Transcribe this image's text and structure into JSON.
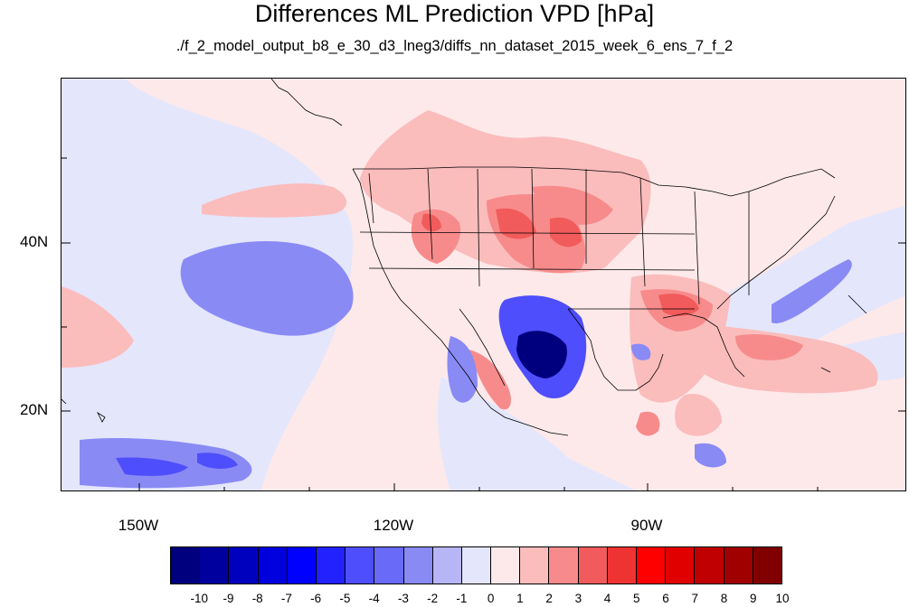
{
  "title": "Differences ML Prediction VPD [hPa]",
  "subtitle": "./f_2_model_output_b8_e_30_d3_lneg3/diffs_nn_dataset_2015_week_6_ens_7_f_2",
  "map": {
    "lat_labels": [
      "40N",
      "20N"
    ],
    "lon_labels": [
      "150W",
      "120W",
      "90W"
    ],
    "region": "Eastern Pacific / North America / Gulf of Mexico",
    "colors": {
      "neg_strong": "#00007f",
      "neg_mid": "#4e4efc",
      "neg_light": "#8a8af5",
      "neg_faint": "#e4e6fb",
      "pos_faint": "#fde9ea",
      "pos_light": "#fbbcbc",
      "pos_mid": "#f78b8b",
      "pos_strong": "#f25b5b",
      "coast": "#000000"
    }
  },
  "colorbar": {
    "labels": [
      "-10",
      "-9",
      "-8",
      "-7",
      "-6",
      "-5",
      "-4",
      "-3",
      "-2",
      "-1",
      "0",
      "1",
      "2",
      "3",
      "4",
      "5",
      "6",
      "7",
      "8",
      "9",
      "10"
    ],
    "colors": [
      "#00007f",
      "#00009f",
      "#0000bf",
      "#0000df",
      "#0000ff",
      "#2222ff",
      "#4e4efc",
      "#6a6af8",
      "#8a8af5",
      "#b6b6f7",
      "#e4e6fb",
      "#fde9ea",
      "#fbbcbc",
      "#f78b8b",
      "#f25b5b",
      "#ef3333",
      "#ff0000",
      "#e00000",
      "#c00000",
      "#a00000",
      "#800000"
    ]
  }
}
